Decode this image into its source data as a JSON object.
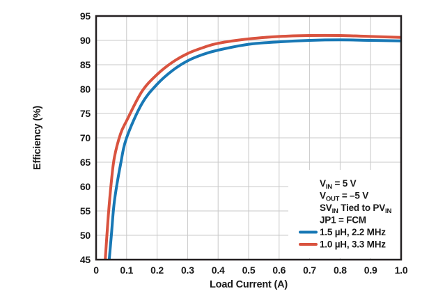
{
  "chart_data": {
    "type": "line",
    "title": "",
    "xlabel": "Load Current (A)",
    "ylabel": "Efficiency (%)",
    "xlim": [
      0,
      1.0
    ],
    "ylim": [
      45,
      95
    ],
    "grid": true,
    "legend_position": "lower right",
    "colors": {
      "frame": "#231f20",
      "grid": "#c9c9c9",
      "text": "#1a1a1a",
      "blue_series": "#1878b5",
      "red_series": "#d9533f",
      "background": "#ffffff"
    },
    "x_ticks": [
      {
        "v": 0.0,
        "label": "0"
      },
      {
        "v": 0.1,
        "label": "0.1"
      },
      {
        "v": 0.2,
        "label": "0.2"
      },
      {
        "v": 0.3,
        "label": "0.3"
      },
      {
        "v": 0.4,
        "label": "0.4"
      },
      {
        "v": 0.5,
        "label": "0.5"
      },
      {
        "v": 0.6,
        "label": "0.6"
      },
      {
        "v": 0.7,
        "label": "0.7"
      },
      {
        "v": 0.8,
        "label": "0.8"
      },
      {
        "v": 0.9,
        "label": "0.9"
      },
      {
        "v": 1.0,
        "label": "1.0"
      }
    ],
    "y_ticks": [
      {
        "v": 45,
        "label": "45"
      },
      {
        "v": 50,
        "label": "50"
      },
      {
        "v": 55,
        "label": "55"
      },
      {
        "v": 60,
        "label": "60"
      },
      {
        "v": 65,
        "label": "65"
      },
      {
        "v": 70,
        "label": "70"
      },
      {
        "v": 75,
        "label": "75"
      },
      {
        "v": 80,
        "label": "80"
      },
      {
        "v": 85,
        "label": "85"
      },
      {
        "v": 90,
        "label": "90"
      },
      {
        "v": 95,
        "label": "95"
      }
    ],
    "series": [
      {
        "name": "1.5 µH, 2.2 MHz",
        "color": "#1878b5",
        "points": [
          [
            0.043,
            45
          ],
          [
            0.05,
            50
          ],
          [
            0.06,
            57
          ],
          [
            0.08,
            64.5
          ],
          [
            0.1,
            70
          ],
          [
            0.15,
            77
          ],
          [
            0.2,
            81
          ],
          [
            0.25,
            83.8
          ],
          [
            0.3,
            85.8
          ],
          [
            0.35,
            87.1
          ],
          [
            0.4,
            88
          ],
          [
            0.5,
            89.2
          ],
          [
            0.6,
            89.7
          ],
          [
            0.7,
            90
          ],
          [
            0.8,
            90.1
          ],
          [
            0.9,
            90
          ],
          [
            1.0,
            89.9
          ]
        ]
      },
      {
        "name": "1.0 µH, 3.3 MHz",
        "color": "#d9533f",
        "points": [
          [
            0.03,
            45
          ],
          [
            0.04,
            54
          ],
          [
            0.05,
            61
          ],
          [
            0.06,
            66
          ],
          [
            0.08,
            70.8
          ],
          [
            0.1,
            73.5
          ],
          [
            0.15,
            79.5
          ],
          [
            0.2,
            83
          ],
          [
            0.25,
            85.5
          ],
          [
            0.3,
            87.3
          ],
          [
            0.35,
            88.5
          ],
          [
            0.4,
            89.4
          ],
          [
            0.5,
            90.3
          ],
          [
            0.6,
            90.8
          ],
          [
            0.7,
            91
          ],
          [
            0.8,
            91
          ],
          [
            0.9,
            90.8
          ],
          [
            1.0,
            90.6
          ]
        ]
      },
      {
        "name": "annotation-only",
        "color": "",
        "points": []
      }
    ],
    "annotations": [
      {
        "segments": [
          {
            "t": "V"
          },
          {
            "t": "IN",
            "sub": true
          },
          {
            "t": " = 5 V"
          }
        ]
      },
      {
        "segments": [
          {
            "t": "V"
          },
          {
            "t": "OUT",
            "sub": true
          },
          {
            "t": " = –5 V"
          }
        ]
      },
      {
        "segments": [
          {
            "t": "SV"
          },
          {
            "t": "IN",
            "sub": true
          },
          {
            "t": " Tied to PV"
          },
          {
            "t": "IN",
            "sub": true
          }
        ]
      },
      {
        "segments": [
          {
            "t": "JP1 = FCM"
          }
        ]
      }
    ],
    "legend_entries": [
      {
        "label": "1.5 µH, 2.2 MHz",
        "color": "#1878b5"
      },
      {
        "label": "1.0 µH, 3.3 MHz",
        "color": "#d9533f"
      }
    ]
  }
}
